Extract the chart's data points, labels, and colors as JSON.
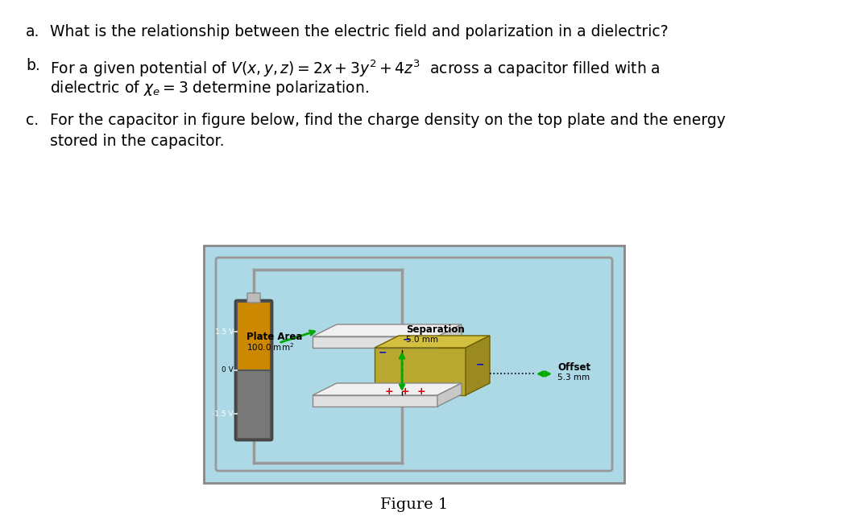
{
  "bg_color": "#ffffff",
  "box_bg": "#add8e6",
  "box_border": "#888888",
  "wire_color": "#999999",
  "bat_orange": "#cc8800",
  "bat_gray": "#787878",
  "bat_cap": "#bbbbbb",
  "bat_border": "#555555",
  "plate_color": "#e0e0e0",
  "plate_edge": "#888888",
  "plate_3d_color": "#c8c8c8",
  "diel_front": "#b8a830",
  "diel_top": "#d4c040",
  "diel_right": "#9a8a20",
  "green_arrow": "#00aa00",
  "charge_pos": "#cc0000",
  "charge_neg": "#0000cc",
  "text_color": "#000000",
  "fig_caption": "Figure 1",
  "sep_label": "Separation",
  "sep_value": "5.0 mm",
  "pa_label": "Plate Area",
  "pa_value": "100.0 mm",
  "off_label": "Offset",
  "off_value": "5.3 mm",
  "bat_v1": "1.5 V",
  "bat_v2": "0 V",
  "bat_v3": "-1.5 V"
}
